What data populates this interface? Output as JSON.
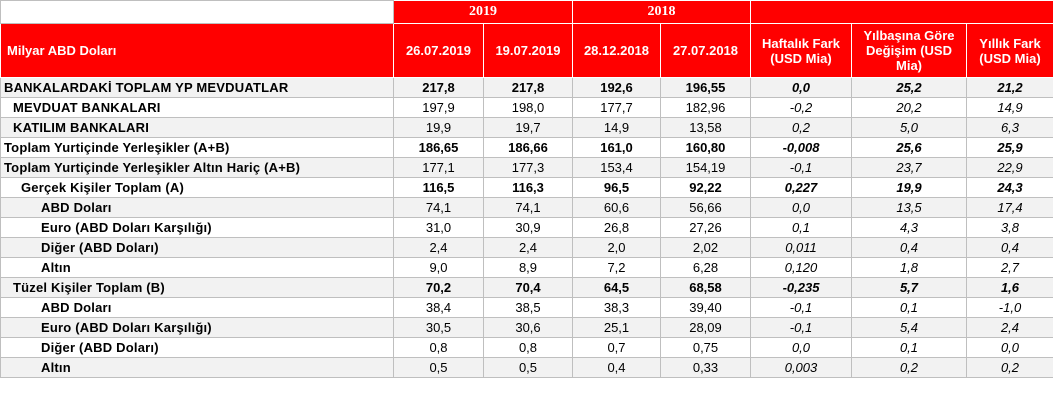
{
  "header": {
    "label": "Milyar ABD Doları",
    "years": [
      "2019",
      "2018"
    ],
    "dates": [
      "26.07.2019",
      "19.07.2019",
      "28.12.2018",
      "27.07.2018"
    ],
    "diffs": [
      "Haftalık Fark (USD Mia)",
      "Yılbaşına Göre Değişim (USD Mia)",
      "Yıllık Fark (USD Mia)"
    ]
  },
  "rows": [
    {
      "label": "BANKALARDAKİ TOPLAM YP MEVDUATLAR",
      "values": [
        "217,8",
        "217,8",
        "192,6",
        "196,55"
      ],
      "diffs": [
        "0,0",
        "25,2",
        "21,2"
      ]
    },
    {
      "label": "MEVDUAT BANKALARI",
      "values": [
        "197,9",
        "198,0",
        "177,7",
        "182,96"
      ],
      "diffs": [
        "-0,2",
        "20,2",
        "14,9"
      ]
    },
    {
      "label": "KATILIM BANKALARI",
      "values": [
        "19,9",
        "19,7",
        "14,9",
        "13,58"
      ],
      "diffs": [
        "0,2",
        "5,0",
        "6,3"
      ]
    },
    {
      "label": "Toplam Yurtiçinde Yerleşikler (A+B)",
      "values": [
        "186,65",
        "186,66",
        "161,0",
        "160,80"
      ],
      "diffs": [
        "-0,008",
        "25,6",
        "25,9"
      ]
    },
    {
      "label": "Toplam Yurtiçinde Yerleşikler Altın Hariç (A+B)",
      "values": [
        "177,1",
        "177,3",
        "153,4",
        "154,19"
      ],
      "diffs": [
        "-0,1",
        "23,7",
        "22,9"
      ]
    },
    {
      "label": "Gerçek Kişiler Toplam (A)",
      "values": [
        "116,5",
        "116,3",
        "96,5",
        "92,22"
      ],
      "diffs": [
        "0,227",
        "19,9",
        "24,3"
      ]
    },
    {
      "label": "ABD Doları",
      "values": [
        "74,1",
        "74,1",
        "60,6",
        "56,66"
      ],
      "diffs": [
        "0,0",
        "13,5",
        "17,4"
      ]
    },
    {
      "label": "Euro (ABD Doları Karşılığı)",
      "values": [
        "31,0",
        "30,9",
        "26,8",
        "27,26"
      ],
      "diffs": [
        "0,1",
        "4,3",
        "3,8"
      ]
    },
    {
      "label": "Diğer (ABD Doları)",
      "values": [
        "2,4",
        "2,4",
        "2,0",
        "2,02"
      ],
      "diffs": [
        "0,011",
        "0,4",
        "0,4"
      ]
    },
    {
      "label": "Altın",
      "values": [
        "9,0",
        "8,9",
        "7,2",
        "6,28"
      ],
      "diffs": [
        "0,120",
        "1,8",
        "2,7"
      ]
    },
    {
      "label": "Tüzel Kişiler Toplam (B)",
      "values": [
        "70,2",
        "70,4",
        "64,5",
        "68,58"
      ],
      "diffs": [
        "-0,235",
        "5,7",
        "1,6"
      ]
    },
    {
      "label": "ABD Doları",
      "values": [
        "38,4",
        "38,5",
        "38,3",
        "39,40"
      ],
      "diffs": [
        "-0,1",
        "0,1",
        "-1,0"
      ]
    },
    {
      "label": "Euro (ABD Doları Karşılığı)",
      "values": [
        "30,5",
        "30,6",
        "25,1",
        "28,09"
      ],
      "diffs": [
        "-0,1",
        "5,4",
        "2,4"
      ]
    },
    {
      "label": "Diğer (ABD Doları)",
      "values": [
        "0,8",
        "0,8",
        "0,7",
        "0,75"
      ],
      "diffs": [
        "0,0",
        "0,1",
        "0,0"
      ]
    },
    {
      "label": "Altın",
      "values": [
        "0,5",
        "0,5",
        "0,4",
        "0,33"
      ],
      "diffs": [
        "0,003",
        "0,2",
        "0,2"
      ]
    }
  ],
  "colors": {
    "header_bg": "#ff0000",
    "header_text": "#ffffff",
    "alt_row": "#f2f2f2"
  }
}
